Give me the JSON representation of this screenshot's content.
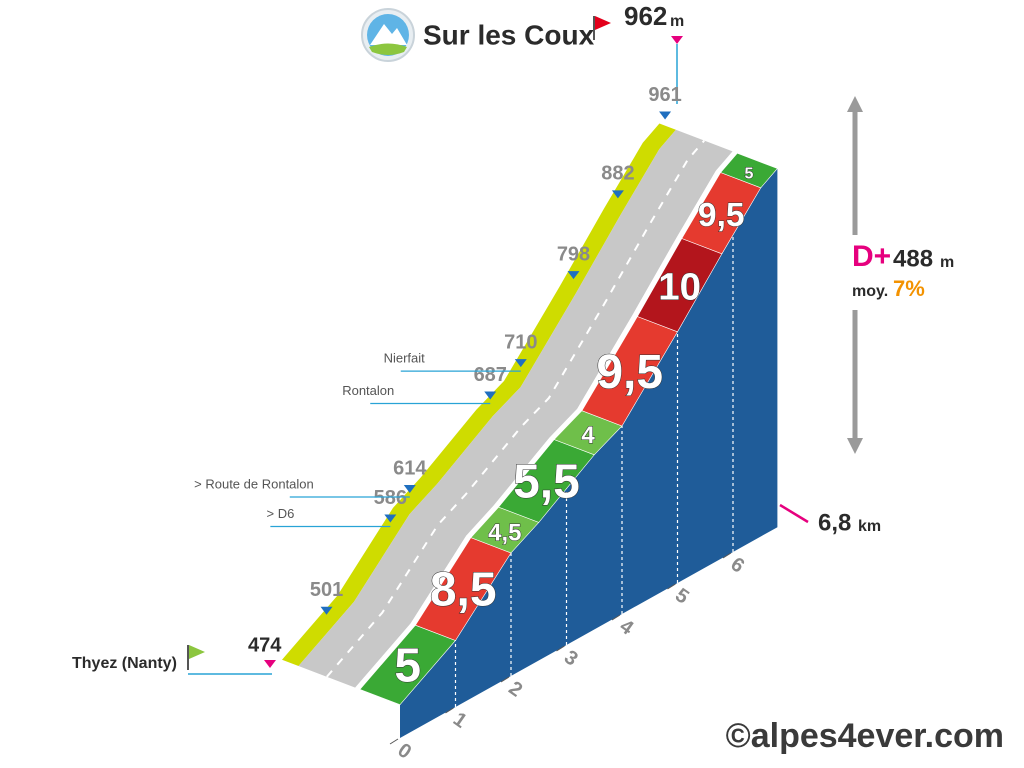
{
  "chart_data": {
    "type": "climb-profile",
    "title": "Sur les Coux",
    "summit_altitude": 962,
    "altitude_unit": "m",
    "start_name": "Thyez (Nanty)",
    "start_altitude": 474,
    "distance": {
      "value": 6.8,
      "label": "6,8"
    },
    "distance_unit": "km",
    "gain_label": "D+",
    "elevation_gain": 488,
    "average_label": "moy.",
    "average_gradient": {
      "value": 7,
      "label": "7%"
    },
    "xlim": [
      0,
      6.8
    ],
    "xticks": [
      0,
      1,
      2,
      3,
      4,
      5,
      6
    ],
    "ylim": [
      424,
      962
    ],
    "segment_bounds": [
      0,
      1,
      2,
      2.5,
      3.5,
      4,
      5,
      5.8,
      6.5,
      6.8
    ],
    "gradients": [
      5,
      8.5,
      4.5,
      5.5,
      4,
      9.5,
      10,
      9.5,
      5
    ],
    "gradient_labels": [
      "5",
      "8,5",
      "4,5",
      "5,5",
      "4",
      "9,5",
      "10",
      "9,5",
      "5"
    ],
    "markers": [
      {
        "km": 0.55,
        "altitude": 501
      },
      {
        "km": 1.7,
        "altitude": 586,
        "place": "> D6"
      },
      {
        "km": 2.05,
        "altitude": 614,
        "place": "> Route de Rontalon"
      },
      {
        "km": 3.5,
        "altitude": 687,
        "place": "Rontalon"
      },
      {
        "km": 4.05,
        "altitude": 710,
        "place": "Nierfait"
      },
      {
        "km": 5,
        "altitude": 798
      },
      {
        "km": 5.8,
        "altitude": 882
      },
      {
        "km": 6.65,
        "altitude": 961
      }
    ],
    "credit": "©alpes4ever.com"
  }
}
